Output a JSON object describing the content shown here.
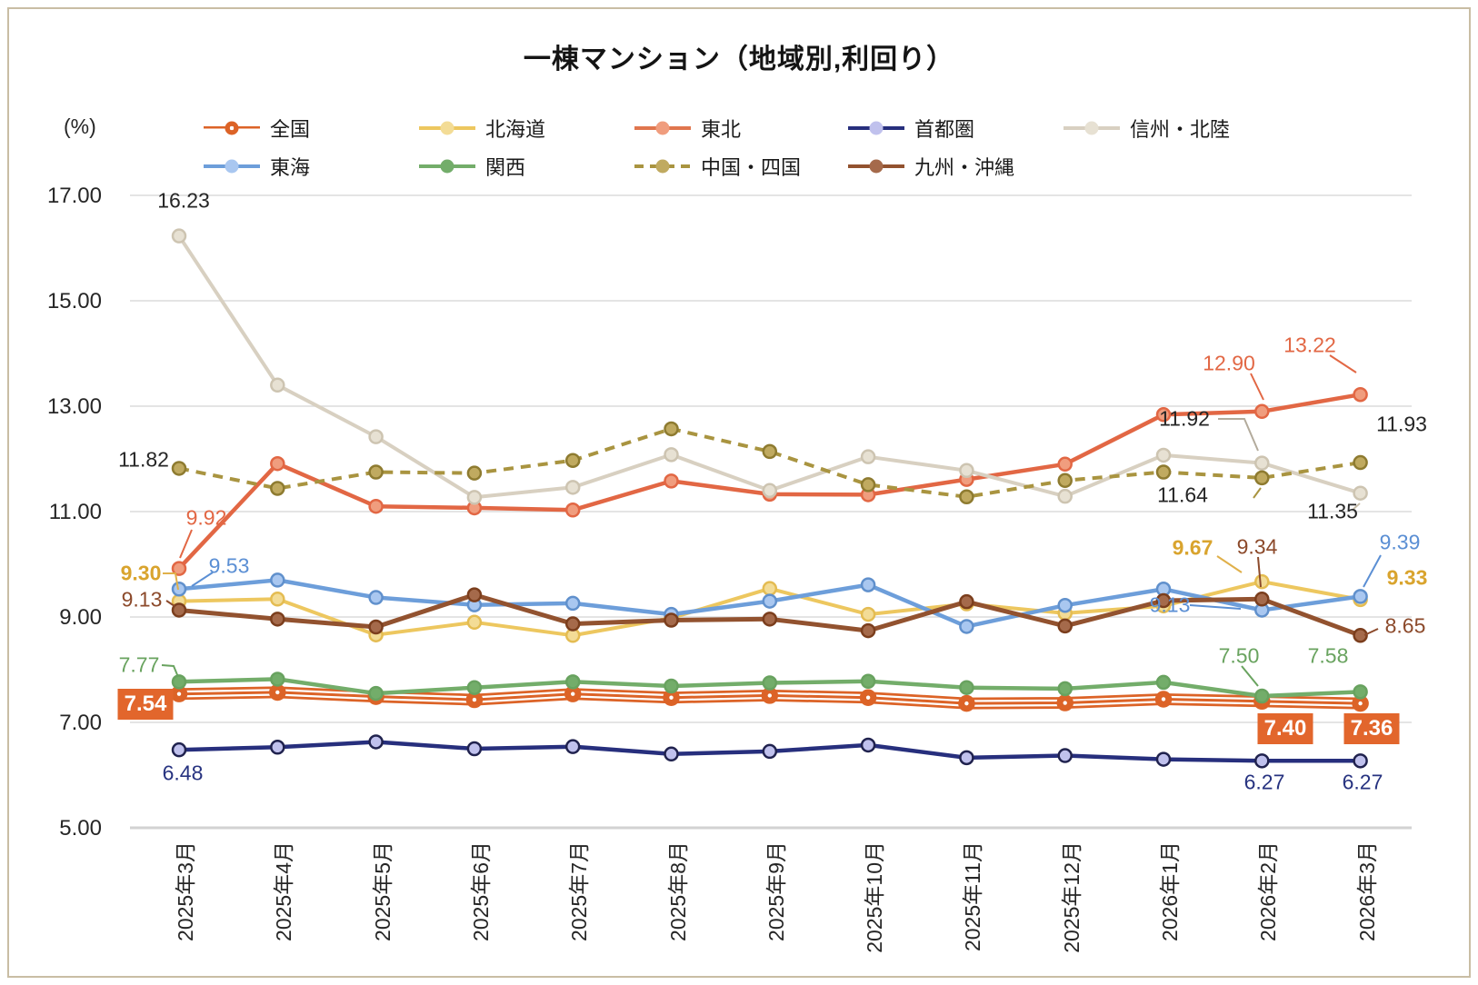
{
  "title": "一棟マンション（地域別,利回り）",
  "y_axis": {
    "unit_label": "(%)",
    "ticks": [
      "17.00",
      "15.00",
      "13.00",
      "11.00",
      "9.00",
      "7.00",
      "5.00"
    ]
  },
  "chart_data": {
    "type": "line",
    "title": "一棟マンション（地域別,利回り）",
    "ylabel": "(%)",
    "ylim": [
      5.0,
      17.0
    ],
    "y_gridlines": [
      17.0,
      15.0,
      13.0,
      11.0,
      9.0,
      7.0
    ],
    "grid": true,
    "legend_position": "top",
    "categories": [
      "2025年3月",
      "2025年4月",
      "2025年5月",
      "2025年6月",
      "2025年7月",
      "2025年8月",
      "2025年9月",
      "2025年10月",
      "2025年11月",
      "2025年12月",
      "2026年1月",
      "2026年2月",
      "2026年3月"
    ],
    "series": [
      {
        "name": "全国",
        "key": "zenkoku",
        "national": true,
        "color": "#DC6327",
        "marker_fill": "#DC6327",
        "marker_stroke": "#DC6327",
        "width": 13,
        "values": [
          7.54,
          7.57,
          7.49,
          7.43,
          7.54,
          7.47,
          7.51,
          7.47,
          7.36,
          7.37,
          7.44,
          7.4,
          7.36
        ]
      },
      {
        "name": "北海道",
        "key": "hokkaido",
        "color": "#EDC75F",
        "marker_fill": "#F3DC96",
        "marker_stroke": "#E4BC52",
        "width": 4,
        "values": [
          9.3,
          9.34,
          8.66,
          8.9,
          8.65,
          8.98,
          9.54,
          9.05,
          9.25,
          9.07,
          9.21,
          9.67,
          9.33
        ]
      },
      {
        "name": "東北",
        "key": "tohoku",
        "color": "#E26744",
        "marker_fill": "#F09D7E",
        "marker_stroke": "#E26744",
        "width": 4.5,
        "values": [
          9.92,
          11.91,
          11.1,
          11.07,
          11.03,
          11.58,
          11.33,
          11.32,
          11.61,
          11.9,
          12.84,
          12.9,
          13.22
        ]
      },
      {
        "name": "首都圏",
        "key": "shutoken",
        "color": "#272F7D",
        "marker_fill": "#C0C1ED",
        "marker_stroke": "#20224E",
        "width": 4.5,
        "values": [
          6.48,
          6.53,
          6.63,
          6.5,
          6.54,
          6.4,
          6.45,
          6.57,
          6.33,
          6.37,
          6.3,
          6.27,
          6.27
        ]
      },
      {
        "name": "信州・北陸",
        "key": "shinshu_hokuriku",
        "color": "#D8D0C1",
        "marker_fill": "#E7E1D3",
        "marker_stroke": "#CDC4B1",
        "width": 4,
        "values": [
          16.23,
          13.4,
          12.42,
          11.27,
          11.46,
          12.08,
          11.4,
          12.04,
          11.78,
          11.29,
          12.07,
          11.92,
          11.35
        ]
      },
      {
        "name": "東海",
        "key": "tokai",
        "color": "#6D9EDA",
        "marker_fill": "#A9C7F0",
        "marker_stroke": "#6090CC",
        "width": 4.5,
        "values": [
          9.53,
          9.7,
          9.37,
          9.23,
          9.26,
          9.05,
          9.3,
          9.61,
          8.82,
          9.22,
          9.53,
          9.13,
          9.39
        ]
      },
      {
        "name": "関西",
        "key": "kansai",
        "color": "#73AD6A",
        "marker_fill": "#73AD6A",
        "marker_stroke": "#68A25F",
        "width": 4.5,
        "values": [
          7.77,
          7.82,
          7.55,
          7.66,
          7.77,
          7.69,
          7.75,
          7.78,
          7.66,
          7.64,
          7.76,
          7.5,
          7.58
        ]
      },
      {
        "name": "中国・四国",
        "key": "chugoku_shikoku",
        "dash": true,
        "color": "#A99440",
        "marker_fill": "#C0AA60",
        "marker_stroke": "#8E7B30",
        "width": 4,
        "values": [
          11.82,
          11.44,
          11.75,
          11.73,
          11.97,
          12.57,
          12.14,
          11.51,
          11.28,
          11.59,
          11.75,
          11.64,
          11.93
        ]
      },
      {
        "name": "九州・沖縄",
        "key": "kyushu_okinawa",
        "color": "#92522F",
        "marker_fill": "#A56A4B",
        "marker_stroke": "#7B3E1D",
        "width": 5,
        "values": [
          9.13,
          8.96,
          8.81,
          9.42,
          8.87,
          8.94,
          8.96,
          8.74,
          9.29,
          8.83,
          9.31,
          9.34,
          8.65
        ]
      }
    ]
  },
  "colors": {
    "accent_orange_box": "#E2662C",
    "grid_line": "#DBDBDB",
    "axis_line": "#D2D2D2",
    "frame_border": "#C9BDA4",
    "label_black": "#262626"
  },
  "annotations": [
    {
      "text": "16.23",
      "series": "信州・北陸"
    },
    {
      "text": "11.82",
      "series": "中国・四国"
    },
    {
      "text": "9.92",
      "series": "東北"
    },
    {
      "text": "9.53",
      "series": "東海"
    },
    {
      "text": "9.30",
      "series": "北海道"
    },
    {
      "text": "9.13",
      "series": "九州・沖縄"
    },
    {
      "text": "7.77",
      "series": "関西"
    },
    {
      "text": "7.54",
      "series": "全国"
    },
    {
      "text": "6.48",
      "series": "首都圏"
    },
    {
      "text": "12.90",
      "series": "東北"
    },
    {
      "text": "13.22",
      "series": "東北"
    },
    {
      "text": "11.92",
      "series": "信州・北陸"
    },
    {
      "text": "11.64",
      "series": "中国・四国"
    },
    {
      "text": "11.35",
      "series": "信州・北陸"
    },
    {
      "text": "11.93",
      "series": "中国・四国"
    },
    {
      "text": "9.67",
      "series": "北海道"
    },
    {
      "text": "9.34",
      "series": "九州・沖縄"
    },
    {
      "text": "9.13",
      "series": "東海"
    },
    {
      "text": "9.39",
      "series": "東海"
    },
    {
      "text": "9.33",
      "series": "北海道"
    },
    {
      "text": "8.65",
      "series": "九州・沖縄"
    },
    {
      "text": "7.50",
      "series": "関西"
    },
    {
      "text": "7.58",
      "series": "関西"
    },
    {
      "text": "7.40",
      "series": "全国"
    },
    {
      "text": "7.36",
      "series": "全国"
    },
    {
      "text": "6.27",
      "series": "首都圏"
    },
    {
      "text": "6.27",
      "series": "首都圏"
    }
  ]
}
